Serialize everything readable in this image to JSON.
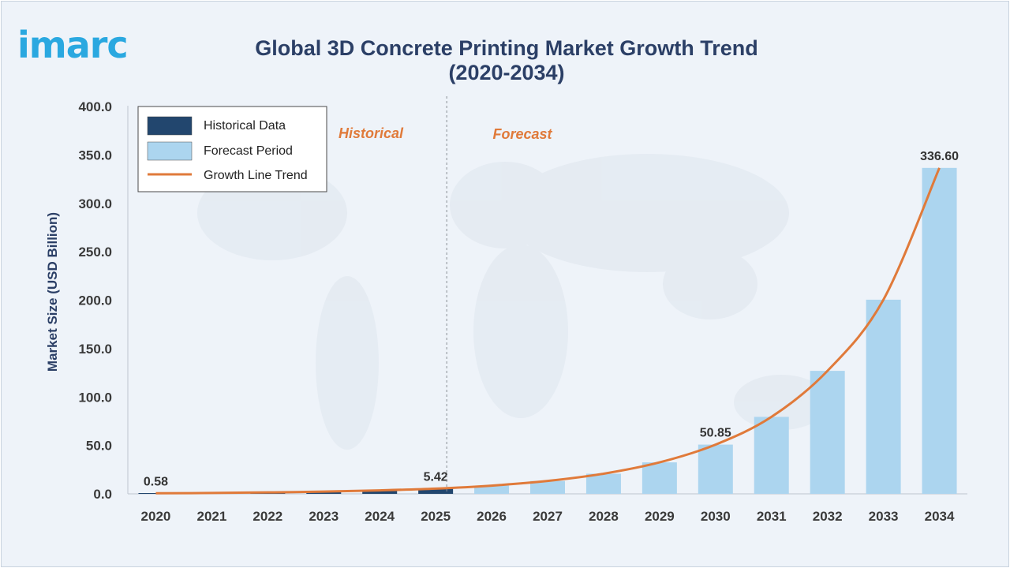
{
  "logo": {
    "text": "imarc"
  },
  "title": "Global 3D Concrete Printing Market Growth Trend (2020-2034)",
  "colors": {
    "historical": "#22466e",
    "forecast": "#acd5ef",
    "trend": "#e07a3a",
    "text": "#2b3f66"
  },
  "legend": {
    "historical": "Historical Data",
    "forecast": "Forecast Period",
    "trend": "Growth Line Trend"
  },
  "regions": {
    "historical": "Historical",
    "forecast": "Forecast"
  },
  "chart_data": {
    "type": "bar",
    "title": "Global 3D Concrete Printing Market Growth Trend (2020-2034)",
    "xlabel": "",
    "ylabel": "Market Size (USD Billion)",
    "ylim": [
      0,
      400
    ],
    "yticks": [
      "0.0",
      "50.0",
      "100.0",
      "150.0",
      "200.0",
      "250.0",
      "300.0",
      "350.0",
      "400.0"
    ],
    "categories": [
      "2020",
      "2021",
      "2022",
      "2023",
      "2024",
      "2025",
      "2026",
      "2027",
      "2028",
      "2029",
      "2030",
      "2031",
      "2032",
      "2033",
      "2034"
    ],
    "values": [
      0.58,
      0.9,
      1.5,
      2.3,
      3.6,
      5.42,
      8.5,
      13.3,
      20.8,
      32.5,
      50.85,
      79.5,
      127.0,
      200.5,
      336.6
    ],
    "period": [
      "historical",
      "historical",
      "historical",
      "historical",
      "historical",
      "historical",
      "forecast",
      "forecast",
      "forecast",
      "forecast",
      "forecast",
      "forecast",
      "forecast",
      "forecast",
      "forecast"
    ],
    "data_labels": [
      {
        "category": "2020",
        "text": "0.58"
      },
      {
        "category": "2025",
        "text": "5.42"
      },
      {
        "category": "2030",
        "text": "50.85"
      },
      {
        "category": "2034",
        "text": "336.60"
      }
    ],
    "trend_line": true,
    "grid": false,
    "legend_position": "top-left"
  }
}
